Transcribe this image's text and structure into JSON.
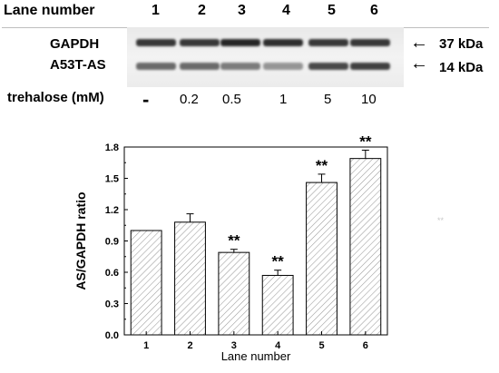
{
  "header": {
    "lane_label": "Lane number",
    "lanes": [
      "1",
      "2",
      "3",
      "4",
      "5",
      "6"
    ]
  },
  "blot": {
    "rows": [
      {
        "label": "GAPDH",
        "marker": "37 kDa",
        "intensity": [
          0.85,
          0.85,
          0.95,
          0.9,
          0.85,
          0.85
        ]
      },
      {
        "label": "A53T-AS",
        "marker": "14 kDa",
        "intensity": [
          0.55,
          0.55,
          0.45,
          0.3,
          0.75,
          0.8
        ]
      }
    ],
    "arrow_glyph": "←"
  },
  "treatment": {
    "label": "trehalose (mM)",
    "values": [
      "-",
      "0.2",
      "0.5",
      "1",
      "5",
      "10"
    ]
  },
  "stray_mark": "**",
  "chart_data": {
    "type": "bar",
    "categories": [
      "1",
      "2",
      "3",
      "4",
      "5",
      "6"
    ],
    "values": [
      1.0,
      1.08,
      0.79,
      0.57,
      1.46,
      1.69
    ],
    "errors": [
      0,
      0.08,
      0.03,
      0.05,
      0.08,
      0.08
    ],
    "annotations": [
      "",
      "",
      "**",
      "**",
      "**",
      "**"
    ],
    "xlabel": "Lane number",
    "ylabel": "AS/GAPDH ratio",
    "ylim": [
      0,
      1.8
    ],
    "yticks": [
      "0.0",
      "0.3",
      "0.6",
      "0.9",
      "1.2",
      "1.5",
      "1.8"
    ],
    "fill": "diagonal-hatch",
    "grid": false
  }
}
